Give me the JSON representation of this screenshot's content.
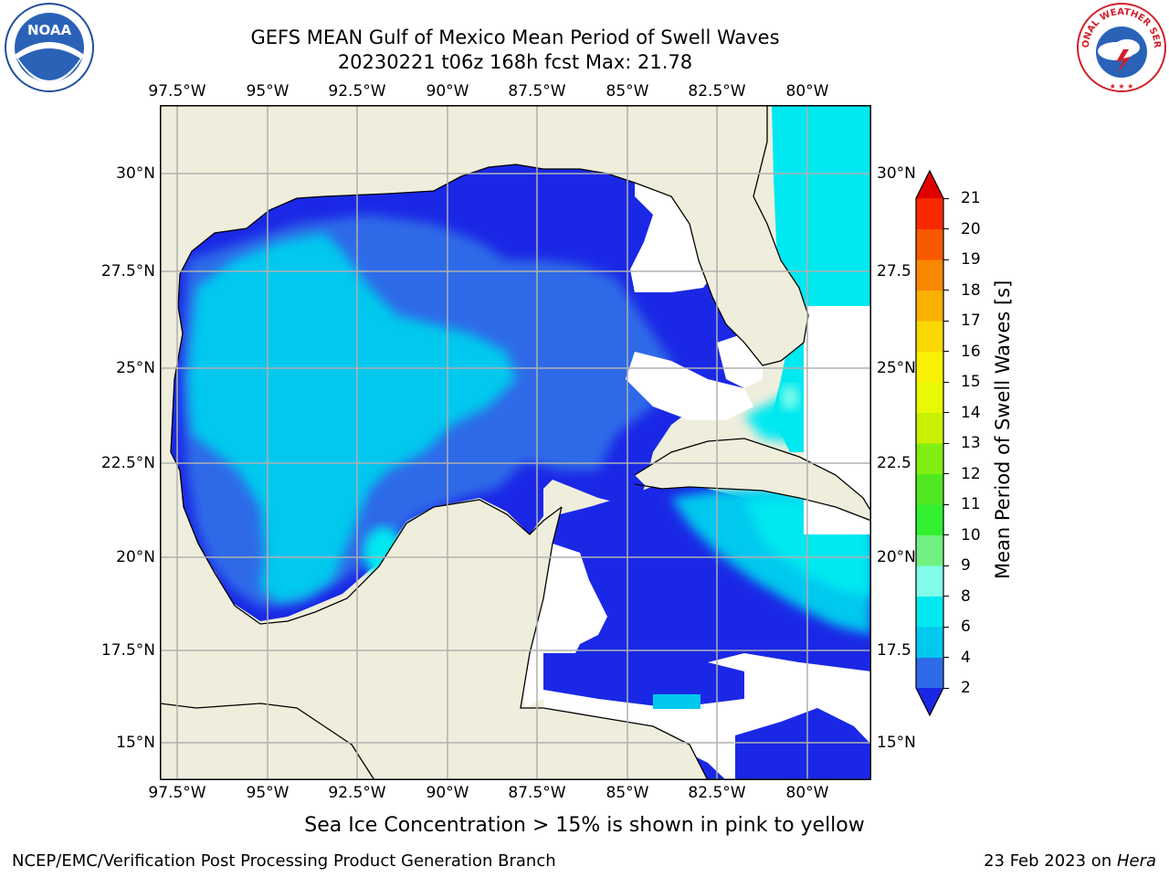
{
  "header": {
    "title_line1": "GEFS MEAN Gulf of Mexico Mean Period of Swell Waves",
    "title_line2": "20230221 t06z 168h fcst   Max: 21.78"
  },
  "logos": {
    "left": {
      "icon": "noaa-logo-icon",
      "text": "NOAA"
    },
    "right": {
      "icon": "nws-logo-icon",
      "text": "NATIONAL WEATHER SERVICE"
    }
  },
  "map": {
    "lon_ticks": [
      "97.5°W",
      "95°W",
      "92.5°W",
      "90°W",
      "87.5°W",
      "85°W",
      "82.5°W",
      "80°W"
    ],
    "lat_ticks_left": [
      "30°N",
      "27.5°N",
      "25°N",
      "22.5°N",
      "20°N",
      "17.5°N",
      "15°N"
    ],
    "lat_ticks_right": [
      "30°N",
      "27.5",
      "25°N",
      "22.5",
      "20°N",
      "17.5",
      "15°N"
    ],
    "lon_range": [
      -98,
      -78.2
    ],
    "lat_range": [
      14,
      31.8
    ],
    "colors": {
      "land": "#efeedc",
      "no_data": "#ffffff",
      "coast": "#000000",
      "grid": "#b0b0b0"
    }
  },
  "colorbar": {
    "label": "Mean Period of Swell Waves [s]",
    "ticks": [
      "2",
      "4",
      "6",
      "8",
      "9",
      "10",
      "11",
      "12",
      "13",
      "14",
      "15",
      "16",
      "17",
      "18",
      "19",
      "20",
      "21"
    ],
    "colors": [
      "#1a28e6",
      "#2f6be8",
      "#00c8ee",
      "#00e8f0",
      "#80fce8",
      "#70f080",
      "#30f030",
      "#50e820",
      "#80ee10",
      "#c8f000",
      "#e8f800",
      "#f8f000",
      "#f8d800",
      "#f8b000",
      "#f88800",
      "#f85800",
      "#f82800",
      "#e00000"
    ],
    "extend": "both"
  },
  "caption": "Sea Ice Concentration > 15% is shown in pink to yellow",
  "footer": {
    "left": "NCEP/EMC/Verification Post Processing Product Generation Branch",
    "right_date": "23 Feb 2023 on ",
    "right_host": "Hera"
  }
}
